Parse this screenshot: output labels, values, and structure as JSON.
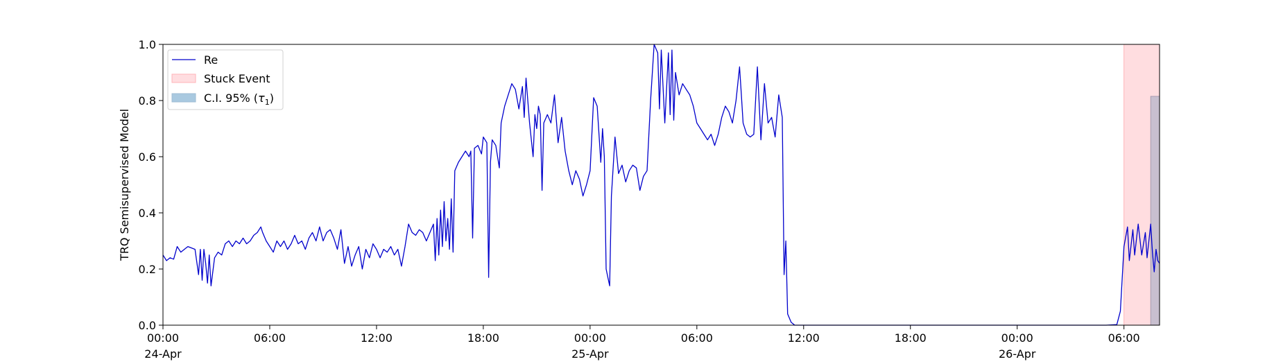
{
  "chart_data": {
    "type": "line",
    "ylabel": "TRQ Semisupervised Model",
    "ylim": [
      0.0,
      1.0
    ],
    "xlim_hours": [
      0,
      56
    ],
    "yticks": [
      {
        "value": 0.0,
        "label": "0.0"
      },
      {
        "value": 0.2,
        "label": "0.2"
      },
      {
        "value": 0.4,
        "label": "0.4"
      },
      {
        "value": 0.6,
        "label": "0.6"
      },
      {
        "value": 0.8,
        "label": "0.8"
      },
      {
        "value": 1.0,
        "label": "1.0"
      }
    ],
    "xticks": [
      {
        "hour": 0,
        "label": "00:00",
        "sublabel": "24-Apr",
        "year": "1900"
      },
      {
        "hour": 6,
        "label": "06:00"
      },
      {
        "hour": 12,
        "label": "12:00"
      },
      {
        "hour": 18,
        "label": "18:00"
      },
      {
        "hour": 24,
        "label": "00:00",
        "sublabel": "25-Apr"
      },
      {
        "hour": 30,
        "label": "06:00"
      },
      {
        "hour": 36,
        "label": "12:00"
      },
      {
        "hour": 42,
        "label": "18:00"
      },
      {
        "hour": 48,
        "label": "00:00",
        "sublabel": "26-Apr"
      },
      {
        "hour": 54,
        "label": "06:00"
      }
    ],
    "legend": {
      "placement": "top-left",
      "entries": [
        {
          "key": "line",
          "label": "Re"
        },
        {
          "key": "stuck",
          "label": "Stuck Event"
        },
        {
          "key": "ci",
          "label": "C.I. 95% (",
          "math": "τ",
          "sub": "1",
          "suffix": ")"
        }
      ]
    },
    "colors": {
      "line": "#0000cc",
      "stuck_fill": "#ffdde0",
      "stuck_edge": "#ffb3b8",
      "ci_fill": "#a9c9e0",
      "overlap_fill": "#c8bfcf"
    },
    "stuck_event": {
      "start_hour": 54.0,
      "end_hour": 56.0
    },
    "ci_band": {
      "start_hour": 55.5,
      "end_hour": 56.0,
      "upper": 0.815
    },
    "series": [
      {
        "name": "Re",
        "points": [
          [
            0.0,
            0.25
          ],
          [
            0.2,
            0.23
          ],
          [
            0.4,
            0.24
          ],
          [
            0.6,
            0.235
          ],
          [
            0.8,
            0.28
          ],
          [
            1.0,
            0.26
          ],
          [
            1.2,
            0.27
          ],
          [
            1.4,
            0.28
          ],
          [
            1.6,
            0.275
          ],
          [
            1.8,
            0.27
          ],
          [
            2.0,
            0.18
          ],
          [
            2.1,
            0.27
          ],
          [
            2.2,
            0.16
          ],
          [
            2.3,
            0.27
          ],
          [
            2.4,
            0.22
          ],
          [
            2.5,
            0.15
          ],
          [
            2.6,
            0.25
          ],
          [
            2.7,
            0.14
          ],
          [
            2.9,
            0.24
          ],
          [
            3.1,
            0.26
          ],
          [
            3.3,
            0.25
          ],
          [
            3.5,
            0.29
          ],
          [
            3.7,
            0.3
          ],
          [
            3.9,
            0.28
          ],
          [
            4.1,
            0.3
          ],
          [
            4.3,
            0.29
          ],
          [
            4.5,
            0.31
          ],
          [
            4.7,
            0.29
          ],
          [
            4.9,
            0.3
          ],
          [
            5.1,
            0.32
          ],
          [
            5.3,
            0.33
          ],
          [
            5.5,
            0.35
          ],
          [
            5.6,
            0.33
          ],
          [
            5.8,
            0.3
          ],
          [
            6.0,
            0.28
          ],
          [
            6.2,
            0.26
          ],
          [
            6.4,
            0.3
          ],
          [
            6.6,
            0.28
          ],
          [
            6.8,
            0.3
          ],
          [
            7.0,
            0.27
          ],
          [
            7.2,
            0.29
          ],
          [
            7.4,
            0.32
          ],
          [
            7.6,
            0.29
          ],
          [
            7.8,
            0.3
          ],
          [
            8.0,
            0.27
          ],
          [
            8.2,
            0.31
          ],
          [
            8.4,
            0.33
          ],
          [
            8.6,
            0.3
          ],
          [
            8.8,
            0.35
          ],
          [
            9.0,
            0.3
          ],
          [
            9.2,
            0.33
          ],
          [
            9.4,
            0.34
          ],
          [
            9.6,
            0.31
          ],
          [
            9.8,
            0.27
          ],
          [
            10.0,
            0.34
          ],
          [
            10.2,
            0.22
          ],
          [
            10.4,
            0.28
          ],
          [
            10.6,
            0.21
          ],
          [
            10.8,
            0.25
          ],
          [
            11.0,
            0.28
          ],
          [
            11.2,
            0.2
          ],
          [
            11.4,
            0.27
          ],
          [
            11.6,
            0.24
          ],
          [
            11.8,
            0.29
          ],
          [
            12.0,
            0.27
          ],
          [
            12.2,
            0.24
          ],
          [
            12.4,
            0.27
          ],
          [
            12.6,
            0.26
          ],
          [
            12.8,
            0.28
          ],
          [
            13.0,
            0.25
          ],
          [
            13.2,
            0.27
          ],
          [
            13.4,
            0.21
          ],
          [
            13.6,
            0.28
          ],
          [
            13.8,
            0.36
          ],
          [
            14.0,
            0.33
          ],
          [
            14.2,
            0.32
          ],
          [
            14.4,
            0.34
          ],
          [
            14.6,
            0.33
          ],
          [
            14.8,
            0.3
          ],
          [
            15.0,
            0.33
          ],
          [
            15.2,
            0.36
          ],
          [
            15.3,
            0.23
          ],
          [
            15.4,
            0.38
          ],
          [
            15.5,
            0.25
          ],
          [
            15.6,
            0.41
          ],
          [
            15.7,
            0.28
          ],
          [
            15.8,
            0.44
          ],
          [
            15.9,
            0.3
          ],
          [
            16.0,
            0.38
          ],
          [
            16.1,
            0.27
          ],
          [
            16.2,
            0.45
          ],
          [
            16.3,
            0.26
          ],
          [
            16.4,
            0.55
          ],
          [
            16.6,
            0.58
          ],
          [
            16.8,
            0.6
          ],
          [
            17.0,
            0.62
          ],
          [
            17.2,
            0.6
          ],
          [
            17.3,
            0.62
          ],
          [
            17.4,
            0.31
          ],
          [
            17.5,
            0.63
          ],
          [
            17.7,
            0.64
          ],
          [
            17.9,
            0.61
          ],
          [
            18.0,
            0.67
          ],
          [
            18.2,
            0.65
          ],
          [
            18.3,
            0.17
          ],
          [
            18.4,
            0.58
          ],
          [
            18.5,
            0.66
          ],
          [
            18.7,
            0.64
          ],
          [
            18.9,
            0.56
          ],
          [
            19.0,
            0.72
          ],
          [
            19.2,
            0.78
          ],
          [
            19.4,
            0.82
          ],
          [
            19.6,
            0.86
          ],
          [
            19.8,
            0.84
          ],
          [
            20.0,
            0.77
          ],
          [
            20.2,
            0.85
          ],
          [
            20.3,
            0.74
          ],
          [
            20.4,
            0.88
          ],
          [
            20.6,
            0.72
          ],
          [
            20.8,
            0.6
          ],
          [
            20.9,
            0.75
          ],
          [
            21.0,
            0.7
          ],
          [
            21.1,
            0.78
          ],
          [
            21.2,
            0.75
          ],
          [
            21.3,
            0.48
          ],
          [
            21.4,
            0.72
          ],
          [
            21.6,
            0.75
          ],
          [
            21.8,
            0.72
          ],
          [
            22.0,
            0.82
          ],
          [
            22.2,
            0.65
          ],
          [
            22.4,
            0.74
          ],
          [
            22.6,
            0.62
          ],
          [
            22.8,
            0.55
          ],
          [
            23.0,
            0.5
          ],
          [
            23.2,
            0.55
          ],
          [
            23.4,
            0.52
          ],
          [
            23.6,
            0.46
          ],
          [
            23.8,
            0.5
          ],
          [
            24.0,
            0.55
          ],
          [
            24.2,
            0.81
          ],
          [
            24.4,
            0.78
          ],
          [
            24.5,
            0.68
          ],
          [
            24.6,
            0.58
          ],
          [
            24.7,
            0.7
          ],
          [
            24.8,
            0.6
          ],
          [
            24.9,
            0.2
          ],
          [
            25.0,
            0.17
          ],
          [
            25.1,
            0.14
          ],
          [
            25.2,
            0.46
          ],
          [
            25.4,
            0.67
          ],
          [
            25.6,
            0.54
          ],
          [
            25.8,
            0.57
          ],
          [
            26.0,
            0.51
          ],
          [
            26.2,
            0.55
          ],
          [
            26.4,
            0.57
          ],
          [
            26.6,
            0.56
          ],
          [
            26.8,
            0.48
          ],
          [
            27.0,
            0.53
          ],
          [
            27.2,
            0.55
          ],
          [
            27.4,
            0.8
          ],
          [
            27.6,
            1.0
          ],
          [
            27.8,
            0.97
          ],
          [
            27.9,
            0.77
          ],
          [
            28.0,
            0.98
          ],
          [
            28.2,
            0.72
          ],
          [
            28.4,
            0.97
          ],
          [
            28.5,
            0.75
          ],
          [
            28.6,
            0.98
          ],
          [
            28.7,
            0.73
          ],
          [
            28.8,
            0.9
          ],
          [
            29.0,
            0.82
          ],
          [
            29.2,
            0.86
          ],
          [
            29.4,
            0.84
          ],
          [
            29.6,
            0.82
          ],
          [
            29.8,
            0.78
          ],
          [
            30.0,
            0.72
          ],
          [
            30.2,
            0.7
          ],
          [
            30.4,
            0.68
          ],
          [
            30.6,
            0.66
          ],
          [
            30.8,
            0.68
          ],
          [
            31.0,
            0.64
          ],
          [
            31.2,
            0.68
          ],
          [
            31.4,
            0.74
          ],
          [
            31.6,
            0.78
          ],
          [
            31.8,
            0.76
          ],
          [
            32.0,
            0.72
          ],
          [
            32.2,
            0.8
          ],
          [
            32.4,
            0.92
          ],
          [
            32.5,
            0.82
          ],
          [
            32.6,
            0.72
          ],
          [
            32.8,
            0.68
          ],
          [
            33.0,
            0.67
          ],
          [
            33.2,
            0.68
          ],
          [
            33.4,
            0.92
          ],
          [
            33.6,
            0.66
          ],
          [
            33.8,
            0.86
          ],
          [
            34.0,
            0.72
          ],
          [
            34.2,
            0.74
          ],
          [
            34.4,
            0.67
          ],
          [
            34.6,
            0.82
          ],
          [
            34.8,
            0.74
          ],
          [
            34.9,
            0.18
          ],
          [
            35.0,
            0.3
          ],
          [
            35.1,
            0.04
          ],
          [
            35.3,
            0.01
          ],
          [
            35.5,
            0.0
          ],
          [
            38.0,
            0.0
          ],
          [
            42.0,
            0.0
          ],
          [
            46.0,
            0.0
          ],
          [
            50.0,
            0.0
          ],
          [
            53.0,
            0.0
          ],
          [
            53.6,
            0.002
          ],
          [
            53.8,
            0.05
          ],
          [
            54.0,
            0.28
          ],
          [
            54.2,
            0.35
          ],
          [
            54.3,
            0.23
          ],
          [
            54.5,
            0.34
          ],
          [
            54.6,
            0.25
          ],
          [
            54.8,
            0.36
          ],
          [
            55.0,
            0.25
          ],
          [
            55.2,
            0.33
          ],
          [
            55.3,
            0.24
          ],
          [
            55.5,
            0.36
          ],
          [
            55.6,
            0.26
          ],
          [
            55.7,
            0.19
          ],
          [
            55.8,
            0.27
          ],
          [
            55.9,
            0.23
          ],
          [
            56.0,
            0.22
          ]
        ]
      }
    ]
  }
}
